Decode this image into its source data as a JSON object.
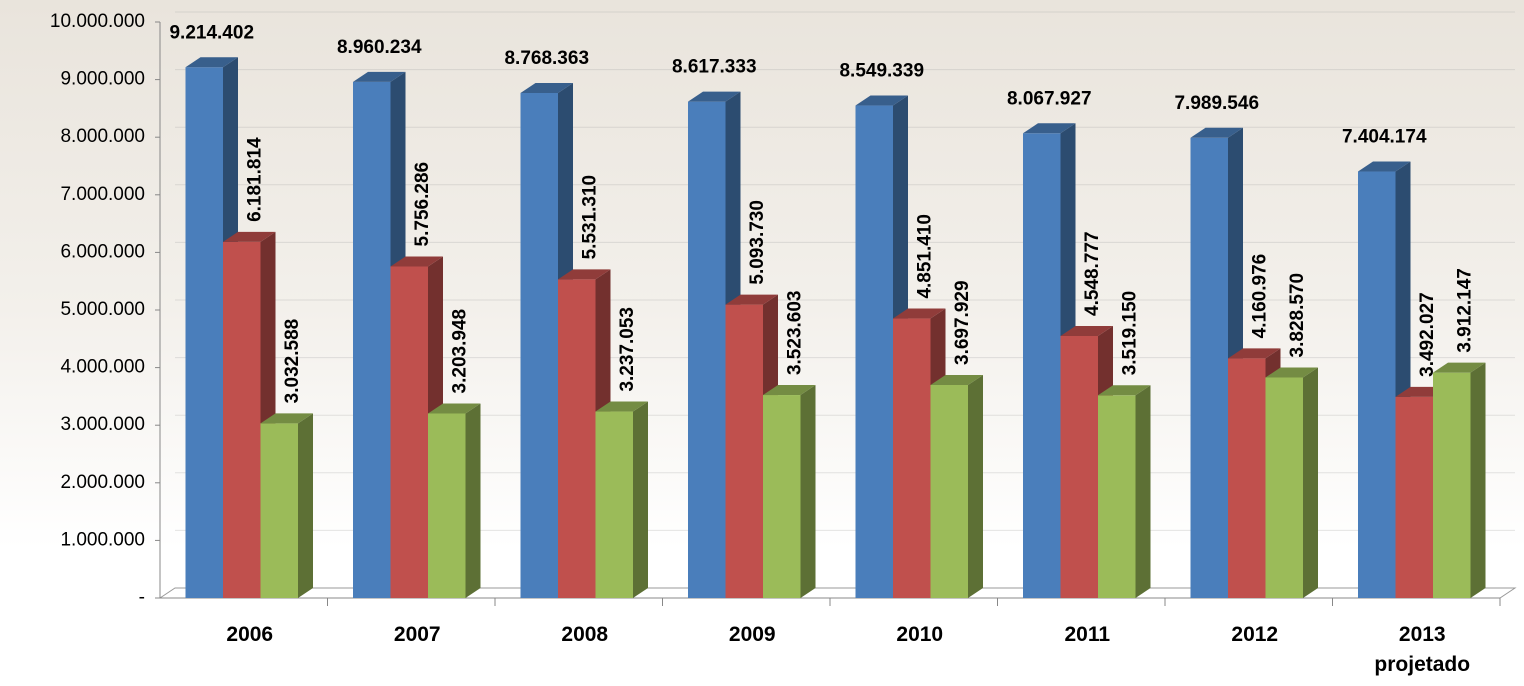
{
  "chart_data": {
    "type": "bar3d",
    "categories": [
      "2006",
      "2007",
      "2008",
      "2009",
      "2010",
      "2011",
      "2012",
      "2013 projetado"
    ],
    "series": [
      {
        "color": "#4a7ebb",
        "values": [
          9214402,
          8960234,
          8768363,
          8617333,
          8549339,
          8067927,
          7989546,
          7404174
        ],
        "value_labels": [
          "9.214.402",
          "8.960.234",
          "8.768.363",
          "8.617.333",
          "8.549.339",
          "8.067.927",
          "7.989.546",
          "7.404.174"
        ]
      },
      {
        "color": "#c0504d",
        "values": [
          6181814,
          5756286,
          5531310,
          5093730,
          4851410,
          4548777,
          4160976,
          3492027
        ],
        "value_labels": [
          "6.181.814",
          "5.756.286",
          "5.531.310",
          "5.093.730",
          "4.851.410",
          "4.548.777",
          "4.160.976",
          "3.492.027"
        ]
      },
      {
        "color": "#9bbb59",
        "values": [
          3032588,
          3203948,
          3237053,
          3523603,
          3697929,
          3519150,
          3828570,
          3912147
        ],
        "value_labels": [
          "3.032.588",
          "3.203.948",
          "3.237.053",
          "3.523.603",
          "3.697.929",
          "3.519.150",
          "3.828.570",
          "3.912.147"
        ]
      }
    ],
    "ylim": [
      0,
      10000000
    ],
    "yticks": [
      {
        "value": 0,
        "label": "-"
      },
      {
        "value": 1000000,
        "label": "1.000.000"
      },
      {
        "value": 2000000,
        "label": "2.000.000"
      },
      {
        "value": 3000000,
        "label": "3.000.000"
      },
      {
        "value": 4000000,
        "label": "4.000.000"
      },
      {
        "value": 5000000,
        "label": "5.000.000"
      },
      {
        "value": 6000000,
        "label": "6.000.000"
      },
      {
        "value": 7000000,
        "label": "7.000.000"
      },
      {
        "value": 8000000,
        "label": "8.000.000"
      },
      {
        "value": 9000000,
        "label": "9.000.000"
      },
      {
        "value": 10000000,
        "label": "10.000.000"
      }
    ]
  }
}
